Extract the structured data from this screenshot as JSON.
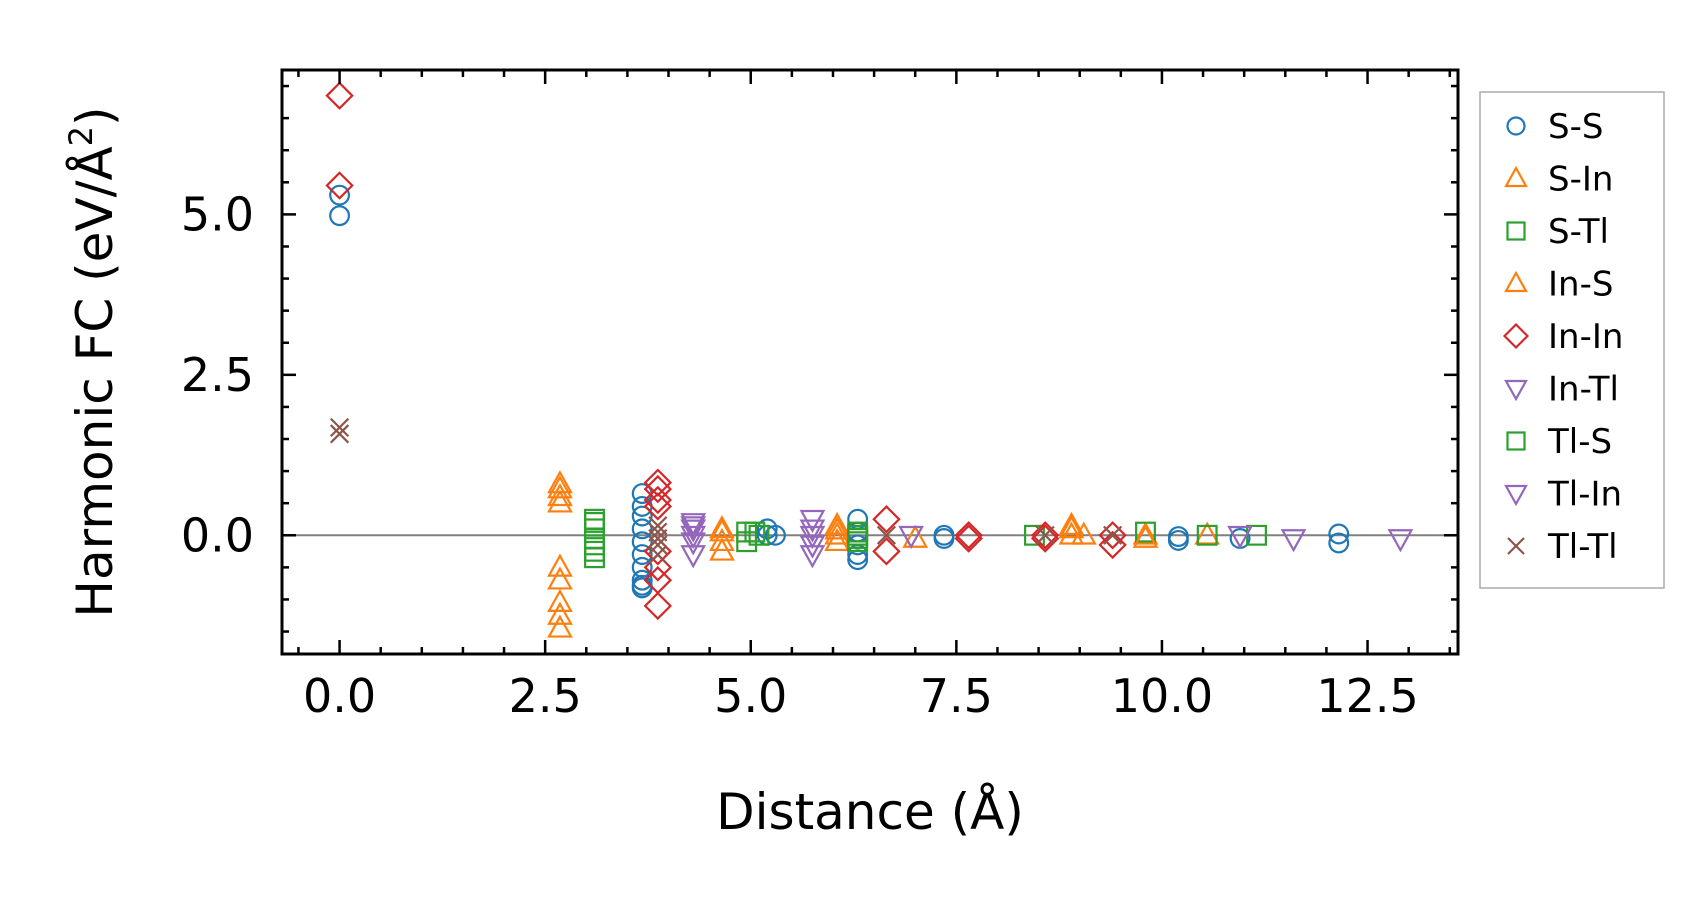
{
  "chart_data": {
    "type": "scatter",
    "title": "",
    "xlabel": "Distance (Å)",
    "ylabel_main": "Harmonic FC (eV/Å",
    "ylabel_sup": "2",
    "ylabel_close": ")",
    "xlim": [
      -0.7,
      13.6
    ],
    "ylim": [
      -1.85,
      7.25
    ],
    "xticks": [
      0.0,
      2.5,
      5.0,
      7.5,
      10.0,
      12.5
    ],
    "xtick_labels": [
      "0.0",
      "2.5",
      "5.0",
      "7.5",
      "10.0",
      "12.5"
    ],
    "yticks": [
      0.0,
      2.5,
      5.0
    ],
    "ytick_labels": [
      "0.0",
      "2.5",
      "5.0"
    ],
    "zero_line": true,
    "legend_position": "outside-right",
    "series": [
      {
        "name": "S-S",
        "marker": "circle",
        "color": "#1f77b4",
        "x": [
          0,
          0,
          3.68,
          3.68,
          3.68,
          3.68,
          3.68,
          3.68,
          3.68,
          3.68,
          3.68,
          3.68,
          5.2,
          5.2,
          5.3,
          6.3,
          6.3,
          6.3,
          6.3,
          6.3,
          7.35,
          7.35,
          10.2,
          10.2,
          10.95,
          12.15,
          12.15
        ],
        "y": [
          5.3,
          4.98,
          0.65,
          0.45,
          0.3,
          0.1,
          -0.1,
          -0.3,
          -0.5,
          -0.7,
          -0.78,
          -0.82,
          0.1,
          0.0,
          0.0,
          0.25,
          0.05,
          -0.15,
          -0.3,
          -0.38,
          0.0,
          -0.05,
          -0.02,
          -0.08,
          -0.05,
          0.02,
          -0.12
        ]
      },
      {
        "name": "S-In",
        "marker": "triangle-up",
        "color": "#ff7f0e",
        "x": [
          2.68,
          2.68,
          2.68,
          2.68,
          2.68,
          2.68,
          2.68,
          4.65,
          4.65,
          4.65,
          6.05,
          6.05,
          6.05,
          7.0,
          8.9,
          8.9,
          9.05,
          9.8,
          10.55
        ],
        "y": [
          0.8,
          0.6,
          -0.5,
          -0.7,
          -1.05,
          -1.25,
          -1.45,
          0.1,
          -0.1,
          -0.25,
          0.15,
          0.0,
          -0.1,
          -0.05,
          0.15,
          0.0,
          0.0,
          0.0,
          0.0
        ]
      },
      {
        "name": "S-Tl",
        "marker": "square",
        "color": "#2ca02c",
        "x": [
          3.1,
          3.1,
          3.1,
          3.1,
          3.1,
          4.95,
          4.95,
          5.1,
          6.3,
          6.3,
          6.3,
          8.45,
          9.8,
          10.55,
          11.15
        ],
        "y": [
          0.25,
          0.1,
          -0.05,
          -0.15,
          -0.35,
          0.05,
          -0.1,
          0.0,
          0.05,
          -0.05,
          -0.1,
          0.0,
          0.05,
          0.0,
          0.0
        ]
      },
      {
        "name": "In-S",
        "marker": "triangle-up",
        "color": "#ff7f0e",
        "x": [
          2.68,
          2.68,
          4.65,
          6.05,
          8.9,
          9.8
        ],
        "y": [
          0.72,
          0.5,
          0.05,
          0.08,
          0.1,
          -0.05
        ]
      },
      {
        "name": "In-In",
        "marker": "diamond",
        "color": "#d62728",
        "x": [
          0,
          0,
          3.87,
          3.87,
          3.87,
          3.87,
          3.87,
          3.87,
          3.87,
          3.87,
          6.65,
          6.65,
          7.65,
          7.65,
          8.58,
          8.58,
          9.4,
          9.4
        ],
        "y": [
          6.85,
          5.45,
          0.82,
          0.72,
          0.55,
          0.45,
          -0.25,
          -0.5,
          -0.7,
          -1.1,
          0.25,
          -0.25,
          0.0,
          -0.05,
          0.0,
          -0.05,
          0.0,
          -0.15
        ]
      },
      {
        "name": "In-Tl",
        "marker": "triangle-down",
        "color": "#9467bd",
        "x": [
          4.3,
          4.3,
          4.3,
          4.3,
          4.3,
          5.75,
          5.75,
          5.75,
          5.75,
          6.95,
          11.6,
          12.9
        ],
        "y": [
          0.2,
          0.1,
          0.0,
          -0.1,
          -0.3,
          0.25,
          0.0,
          -0.15,
          -0.3,
          0.0,
          -0.05,
          -0.05
        ]
      },
      {
        "name": "Tl-S",
        "marker": "square",
        "color": "#2ca02c",
        "x": [
          3.1,
          3.1,
          5.05,
          6.3
        ],
        "y": [
          0.2,
          -0.25,
          0.05,
          0.0
        ]
      },
      {
        "name": "Tl-In",
        "marker": "triangle-down",
        "color": "#9467bd",
        "x": [
          4.3,
          5.75,
          10.95
        ],
        "y": [
          0.15,
          0.1,
          0.0
        ]
      },
      {
        "name": "Tl-Tl",
        "marker": "x",
        "color": "#8c564b",
        "x": [
          0,
          0,
          3.87,
          3.87,
          3.87,
          3.87,
          3.87,
          6.65,
          8.58,
          9.4
        ],
        "y": [
          1.68,
          1.58,
          0.15,
          0.05,
          -0.05,
          -0.15,
          -0.3,
          0.0,
          0.0,
          0.0
        ]
      }
    ]
  }
}
